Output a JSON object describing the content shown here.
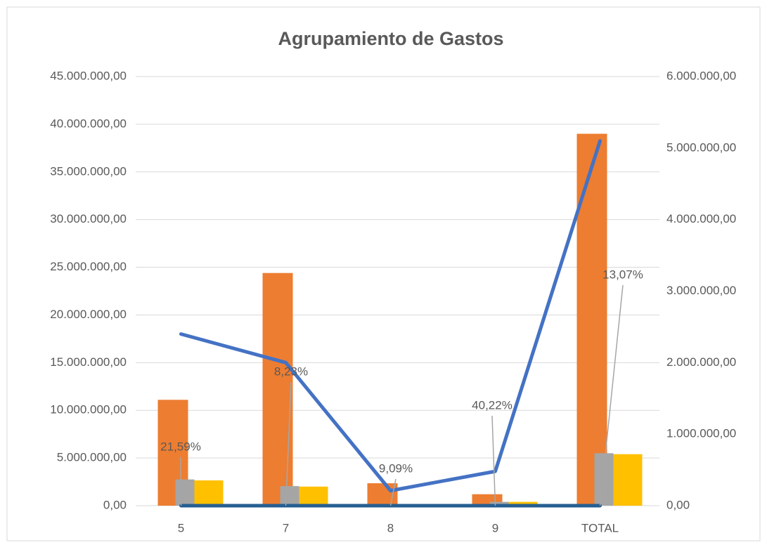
{
  "chart_data": {
    "type": "bar",
    "title": "Agrupamiento de Gastos",
    "categories": [
      "5",
      "7",
      "8",
      "9",
      "TOTAL"
    ],
    "ylim": [
      0,
      45000000
    ],
    "yticks": [
      {
        "value": 0,
        "label": "0,00"
      },
      {
        "value": 5000000,
        "label": "5.000.000,00"
      },
      {
        "value": 10000000,
        "label": "10.000.000,00"
      },
      {
        "value": 15000000,
        "label": "15.000.000,00"
      },
      {
        "value": 20000000,
        "label": "20.000.000,00"
      },
      {
        "value": 25000000,
        "label": "25.000.000,00"
      },
      {
        "value": 30000000,
        "label": "30.000.000,00"
      },
      {
        "value": 35000000,
        "label": "35.000.000,00"
      },
      {
        "value": 40000000,
        "label": "40.000.000,00"
      },
      {
        "value": 45000000,
        "label": "45.000.000,00"
      }
    ],
    "y2lim": [
      0,
      6000000
    ],
    "y2ticks": [
      {
        "value": 0,
        "label": "0,00"
      },
      {
        "value": 1000000,
        "label": "1.000.000,00"
      },
      {
        "value": 2000000,
        "label": "2.000.000,00"
      },
      {
        "value": 3000000,
        "label": "3.000.000,00"
      },
      {
        "value": 4000000,
        "label": "4.000.000,00"
      },
      {
        "value": 5000000,
        "label": "5.000.000,00"
      },
      {
        "value": 6000000,
        "label": "6.000.000,00"
      }
    ],
    "grid": true,
    "series": [
      {
        "type": "bar",
        "color": "#ed7d31",
        "values": [
          11100000,
          24400000,
          2350000,
          1200000,
          39000000
        ]
      },
      {
        "type": "bar",
        "color": "#a5a5a5",
        "values": [
          2750000,
          2050000,
          0,
          400000,
          5500000
        ]
      },
      {
        "type": "bar",
        "color": "#ffc000",
        "values": [
          2650000,
          2000000,
          0,
          400000,
          5400000
        ]
      },
      {
        "type": "line",
        "axis": "y2",
        "color": "#4472c4",
        "values": [
          2400000,
          2000000,
          210000,
          480000,
          5100000
        ]
      },
      {
        "type": "line",
        "axis": "y2",
        "color": "#255e91",
        "values": [
          21.59,
          8.23,
          9.09,
          40.22,
          13.07
        ],
        "value_labels": [
          "21,59%",
          "8,23%",
          "9,09%",
          "40,22%",
          "13,07%"
        ]
      }
    ]
  }
}
